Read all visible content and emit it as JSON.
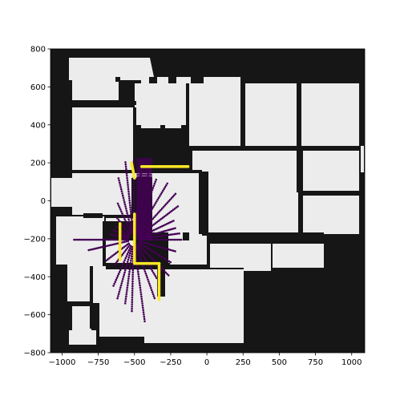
{
  "chart_data": {
    "type": "scatter",
    "title": "",
    "xlabel": "",
    "ylabel": "",
    "xlim": [
      -1080,
      1090
    ],
    "ylim": [
      -800,
      800
    ],
    "x_ticks": [
      -1000,
      -750,
      -500,
      -250,
      0,
      250,
      500,
      750,
      1000
    ],
    "y_ticks": [
      -800,
      -600,
      -400,
      -200,
      0,
      200,
      400,
      600,
      800
    ],
    "x_tick_labels": [
      "−1000",
      "−750",
      "−500",
      "−250",
      "0",
      "250",
      "500",
      "750",
      "1000"
    ],
    "y_tick_labels": [
      "−800",
      "−600",
      "−400",
      "−200",
      "0",
      "200",
      "400",
      "600",
      "800"
    ],
    "grid": false,
    "legend": "none",
    "colors": {
      "occupied": "#161616",
      "free": "#ececec",
      "ray_points": "#440154",
      "hit_points": "#fde725"
    },
    "background_map": {
      "description_free_regions": [
        [
          -1080,
          800,
          -940,
          80
        ],
        [
          -940,
          800,
          560,
          710
        ],
        [
          -1080,
          -20,
          -940,
          -800
        ]
      ]
    },
    "sensor_origin": [
      -505,
      -205
    ],
    "rays": {
      "start_range": 40,
      "end_range_min": 100,
      "spacing": 12,
      "angles_deg_and_lengths": [
        [
          0,
          330
        ],
        [
          -12,
          300
        ],
        [
          -25,
          290
        ],
        [
          -38,
          310
        ],
        [
          -52,
          260
        ],
        [
          -65,
          340
        ],
        [
          -80,
          440
        ],
        [
          -92,
          380
        ],
        [
          -100,
          350
        ],
        [
          -110,
          330
        ],
        [
          -120,
          280
        ],
        [
          -135,
          190
        ],
        [
          -150,
          220
        ],
        [
          -170,
          320
        ],
        [
          180,
          420
        ],
        [
          170,
          160
        ],
        [
          160,
          150
        ],
        [
          150,
          140
        ],
        [
          135,
          160
        ],
        [
          120,
          220
        ],
        [
          108,
          340
        ],
        [
          98,
          420
        ],
        [
          90,
          420
        ],
        [
          82,
          420
        ],
        [
          74,
          420
        ],
        [
          64,
          360
        ],
        [
          52,
          380
        ],
        [
          40,
          380
        ],
        [
          30,
          360
        ],
        [
          20,
          300
        ],
        [
          12,
          300
        ],
        [
          6,
          320
        ]
      ]
    },
    "hit_segments": [
      [
        [
          -500,
          -70
        ],
        [
          -500,
          -330
        ]
      ],
      [
        [
          -500,
          -330
        ],
        [
          -330,
          -330
        ]
      ],
      [
        [
          -330,
          -330
        ],
        [
          -330,
          -520
        ]
      ],
      [
        [
          -600,
          -120
        ],
        [
          -600,
          -310
        ]
      ],
      [
        [
          -520,
          200
        ],
        [
          -500,
          120
        ]
      ],
      [
        [
          -450,
          180
        ],
        [
          -330,
          180
        ]
      ],
      [
        [
          -330,
          180
        ],
        [
          -130,
          180
        ]
      ]
    ]
  }
}
